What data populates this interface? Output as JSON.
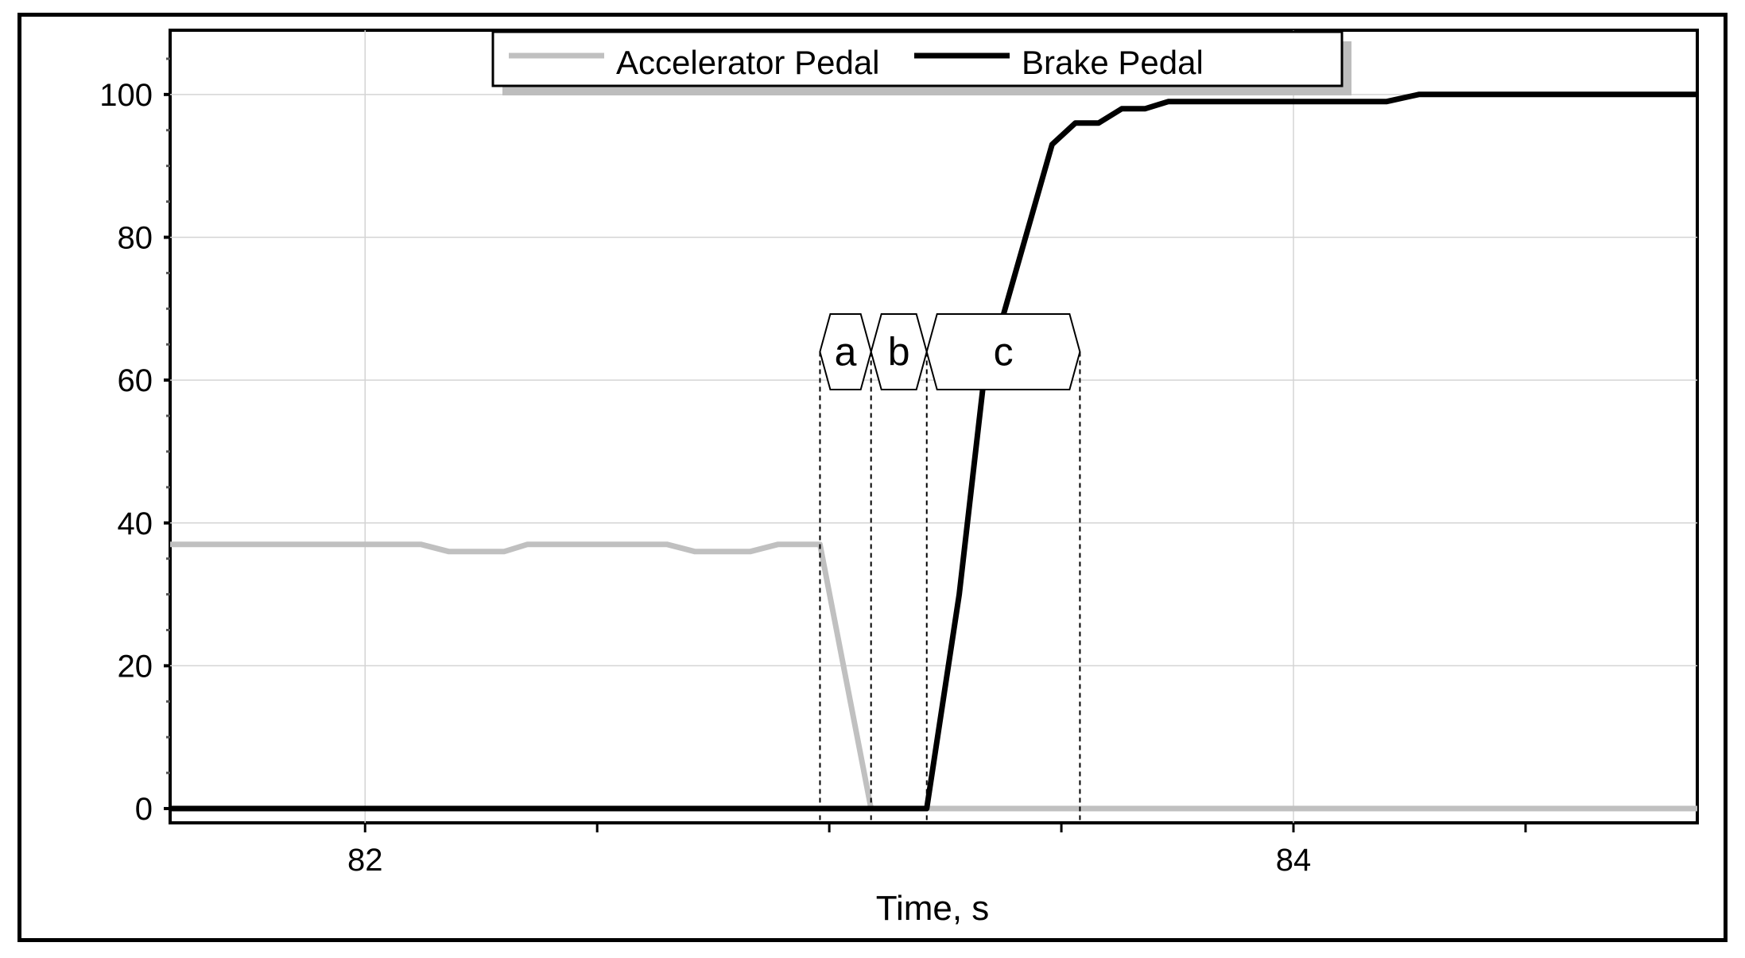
{
  "chart_data": {
    "type": "line",
    "title": "",
    "xlabel": "Time, s",
    "ylabel": "",
    "xlim": [
      81.58,
      84.87
    ],
    "ylim": [
      -2,
      109
    ],
    "x_ticks": [
      82,
      84
    ],
    "x_minor_ticks": [
      82.5,
      83,
      83.5,
      84.5
    ],
    "y_ticks": [
      0,
      20,
      40,
      60,
      80,
      100
    ],
    "grid": true,
    "legend_position": "top-center",
    "series": [
      {
        "name": "Accelerator Pedal",
        "color": "#c0c0c0",
        "points": [
          [
            81.58,
            37
          ],
          [
            82.12,
            37
          ],
          [
            82.18,
            36
          ],
          [
            82.3,
            36
          ],
          [
            82.35,
            37
          ],
          [
            82.65,
            37
          ],
          [
            82.71,
            36
          ],
          [
            82.83,
            36
          ],
          [
            82.89,
            37
          ],
          [
            82.98,
            37
          ],
          [
            83.09,
            0
          ],
          [
            84.87,
            0
          ]
        ]
      },
      {
        "name": "Brake Pedal",
        "color": "#000000",
        "points": [
          [
            81.58,
            0
          ],
          [
            83.21,
            0
          ],
          [
            83.28,
            30
          ],
          [
            83.34,
            64
          ],
          [
            83.37,
            68
          ],
          [
            83.48,
            93
          ],
          [
            83.53,
            96
          ],
          [
            83.58,
            96
          ],
          [
            83.63,
            98
          ],
          [
            83.68,
            98
          ],
          [
            83.73,
            99
          ],
          [
            84.2,
            99
          ],
          [
            84.27,
            100
          ],
          [
            84.87,
            100
          ]
        ]
      }
    ],
    "phases": [
      {
        "label": "a",
        "x_start": 82.98,
        "x_end": 83.09
      },
      {
        "label": "b",
        "x_start": 83.09,
        "x_end": 83.21
      },
      {
        "label": "c",
        "x_start": 83.21,
        "x_end": 83.54
      }
    ]
  }
}
